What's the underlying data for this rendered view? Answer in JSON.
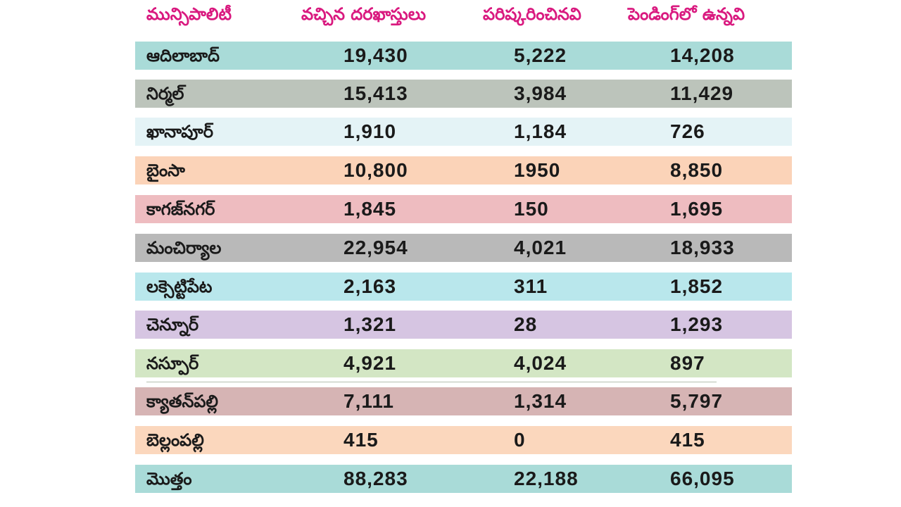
{
  "header": {
    "municipality": "మున్సిపాలిటీ",
    "received": "వచ్చిన దరఖాస్తులు",
    "resolved": "పరిష్కరించినవి",
    "pending": "పెండింగ్‌లో ఉన్నవి"
  },
  "rows": [
    {
      "name": "ఆదిలాబాద్",
      "received": "19,430",
      "resolved": "5,222",
      "pending": "14,208",
      "color": "#a9dbd8"
    },
    {
      "name": "నిర్మల్",
      "received": "15,413",
      "resolved": "3,984",
      "pending": "11,429",
      "color": "#bcc4bb"
    },
    {
      "name": "ఖానాపూర్",
      "received": "1,910",
      "resolved": "1,184",
      "pending": "726",
      "color": "#e4f3f6"
    },
    {
      "name": "బైంసా",
      "received": "10,800",
      "resolved": "1950",
      "pending": "8,850",
      "color": "#fbd3b8"
    },
    {
      "name": "కాగజ్‌నగర్",
      "received": "1,845",
      "resolved": "150",
      "pending": "1,695",
      "color": "#eebcc0"
    },
    {
      "name": "మంచిర్యాల",
      "received": "22,954",
      "resolved": "4,021",
      "pending": "18,933",
      "color": "#b9b9b9"
    },
    {
      "name": "లక్సెట్టిపేట",
      "received": "2,163",
      "resolved": "311",
      "pending": "1,852",
      "color": "#b9e7ec"
    },
    {
      "name": "చెన్నూర్",
      "received": "1,321",
      "resolved": "28",
      "pending": "1,293",
      "color": "#d6c5e2"
    },
    {
      "name": "నస్పూర్",
      "received": "4,921",
      "resolved": "4,024",
      "pending": "897",
      "color": "#d3e6c4"
    },
    {
      "name": "క్యాతన్‌పల్లి",
      "received": "7,111",
      "resolved": "1,314",
      "pending": "5,797",
      "color": "#d6b4b4"
    },
    {
      "name": "బెల్లంపల్లి",
      "received": "415",
      "resolved": "0",
      "pending": "415",
      "color": "#fbd7bd"
    },
    {
      "name": "మొత్తం",
      "received": "88,283",
      "resolved": "22,188",
      "pending": "66,095",
      "color": "#a9dbd8"
    }
  ]
}
